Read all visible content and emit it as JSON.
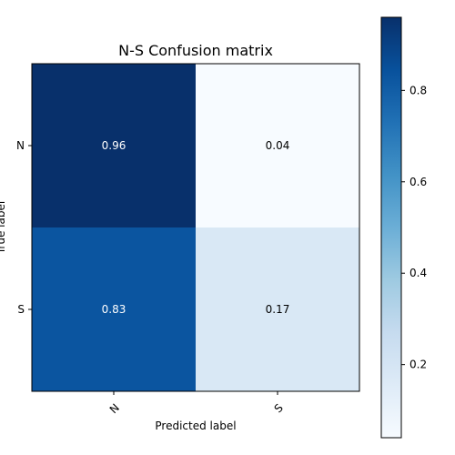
{
  "chart_data": {
    "type": "heatmap",
    "title": "N-S Confusion matrix",
    "xlabel": "Predicted label",
    "ylabel": "True label",
    "x_categories": [
      "N",
      "S"
    ],
    "y_categories": [
      "N",
      "S"
    ],
    "values": [
      [
        0.96,
        0.04
      ],
      [
        0.83,
        0.17
      ]
    ],
    "value_labels": [
      [
        "0.96",
        "0.04"
      ],
      [
        "0.83",
        "0.17"
      ]
    ],
    "colormap": "Blues",
    "colorbar": {
      "range": [
        0.04,
        0.96
      ],
      "ticks": [
        0.2,
        0.4,
        0.6,
        0.8
      ],
      "tick_labels": [
        "0.2",
        "0.4",
        "0.6",
        "0.8"
      ]
    },
    "colors": {
      "cell_0_0": "#08306b",
      "cell_0_1": "#f7fbff",
      "cell_1_0": "#0b55a0",
      "cell_1_1": "#d9e8f5",
      "text_dark_bg": "#ffffff",
      "text_light_bg": "#000000"
    }
  }
}
